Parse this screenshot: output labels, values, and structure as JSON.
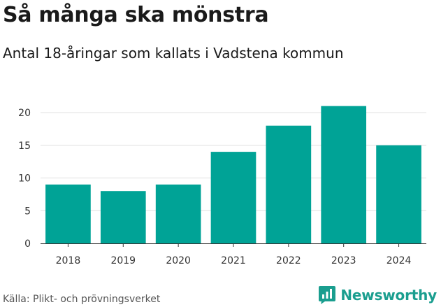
{
  "chart_data": {
    "type": "bar",
    "title": "Så många ska mönstra",
    "subtitle": "Antal 18-åringar som kallats i Vadstena kommun",
    "categories": [
      "2018",
      "2019",
      "2020",
      "2021",
      "2022",
      "2023",
      "2024"
    ],
    "values": [
      9,
      8,
      9,
      14,
      18,
      21,
      15
    ],
    "xlabel": "",
    "ylabel": "",
    "ylim": [
      0,
      22
    ],
    "yticks": [
      0,
      5,
      10,
      15,
      20
    ],
    "grid": true,
    "bar_color": "#00a396",
    "grid_color": "#e0e0e0"
  },
  "footer": {
    "source": "Källa: Plikt- och prövningsverket",
    "brand": "Newsworthy",
    "brand_icon": "bar-chart-speech-icon",
    "brand_color": "#1a9e8f"
  }
}
